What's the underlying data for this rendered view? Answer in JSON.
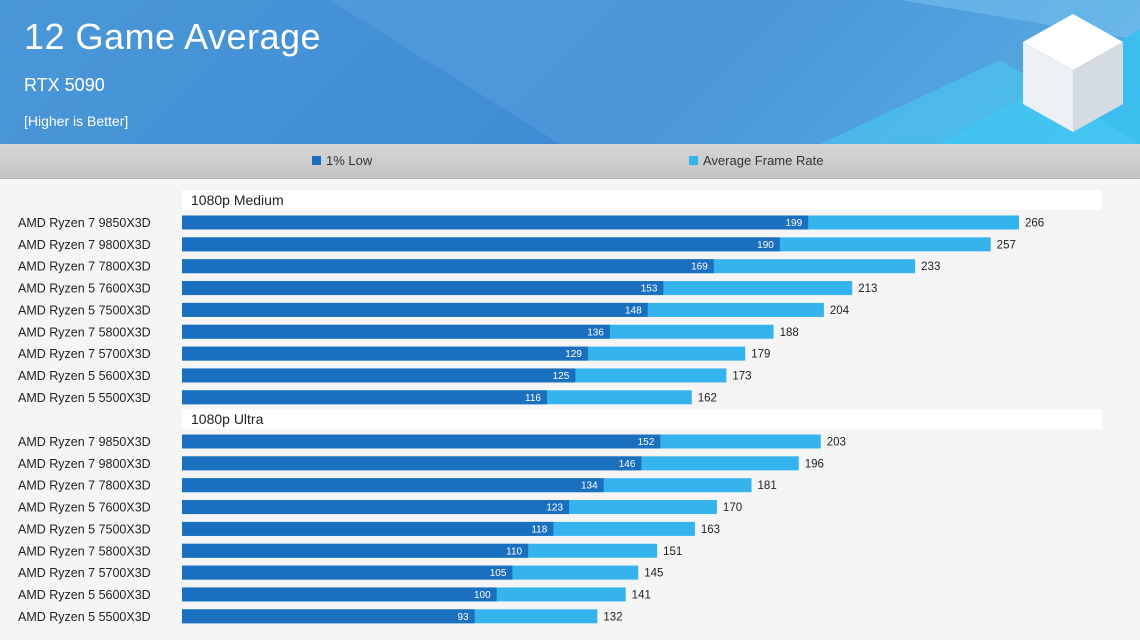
{
  "header": {
    "title": "12 Game Average",
    "subtitle": "RTX 5090",
    "note": "[Higher is Better]"
  },
  "legend": [
    {
      "label": "1% Low",
      "color": "#1a6fbf"
    },
    {
      "label": "Average Frame Rate",
      "color": "#34b3ec"
    }
  ],
  "chart_data": {
    "type": "bar",
    "orientation": "horizontal",
    "stacked": false,
    "xlim": [
      0,
      300
    ],
    "grid": false,
    "legend_position": "top",
    "groups": [
      {
        "label": "1080p Medium",
        "categories": [
          "AMD Ryzen 7 9850X3D",
          "AMD Ryzen 7 9800X3D",
          "AMD Ryzen 7 7800X3D",
          "AMD Ryzen 5 7600X3D",
          "AMD Ryzen 5 7500X3D",
          "AMD Ryzen 7 5800X3D",
          "AMD Ryzen 7 5700X3D",
          "AMD Ryzen 5 5600X3D",
          "AMD Ryzen 5 5500X3D"
        ],
        "series": [
          {
            "name": "1% Low",
            "values": [
              199,
              190,
              169,
              153,
              148,
              136,
              129,
              125,
              116
            ]
          },
          {
            "name": "Average Frame Rate",
            "values": [
              266,
              257,
              233,
              213,
              204,
              188,
              179,
              173,
              162
            ]
          }
        ]
      },
      {
        "label": "1080p Ultra",
        "categories": [
          "AMD Ryzen 7 9850X3D",
          "AMD Ryzen 7 9800X3D",
          "AMD Ryzen 7 7800X3D",
          "AMD Ryzen 5 7600X3D",
          "AMD Ryzen 5 7500X3D",
          "AMD Ryzen 7 5800X3D",
          "AMD Ryzen 7 5700X3D",
          "AMD Ryzen 5 5600X3D",
          "AMD Ryzen 5 5500X3D"
        ],
        "series": [
          {
            "name": "1% Low",
            "values": [
              152,
              146,
              134,
              123,
              118,
              110,
              105,
              100,
              93
            ]
          },
          {
            "name": "Average Frame Rate",
            "values": [
              203,
              196,
              181,
              170,
              163,
              151,
              145,
              141,
              132
            ]
          }
        ]
      }
    ]
  }
}
